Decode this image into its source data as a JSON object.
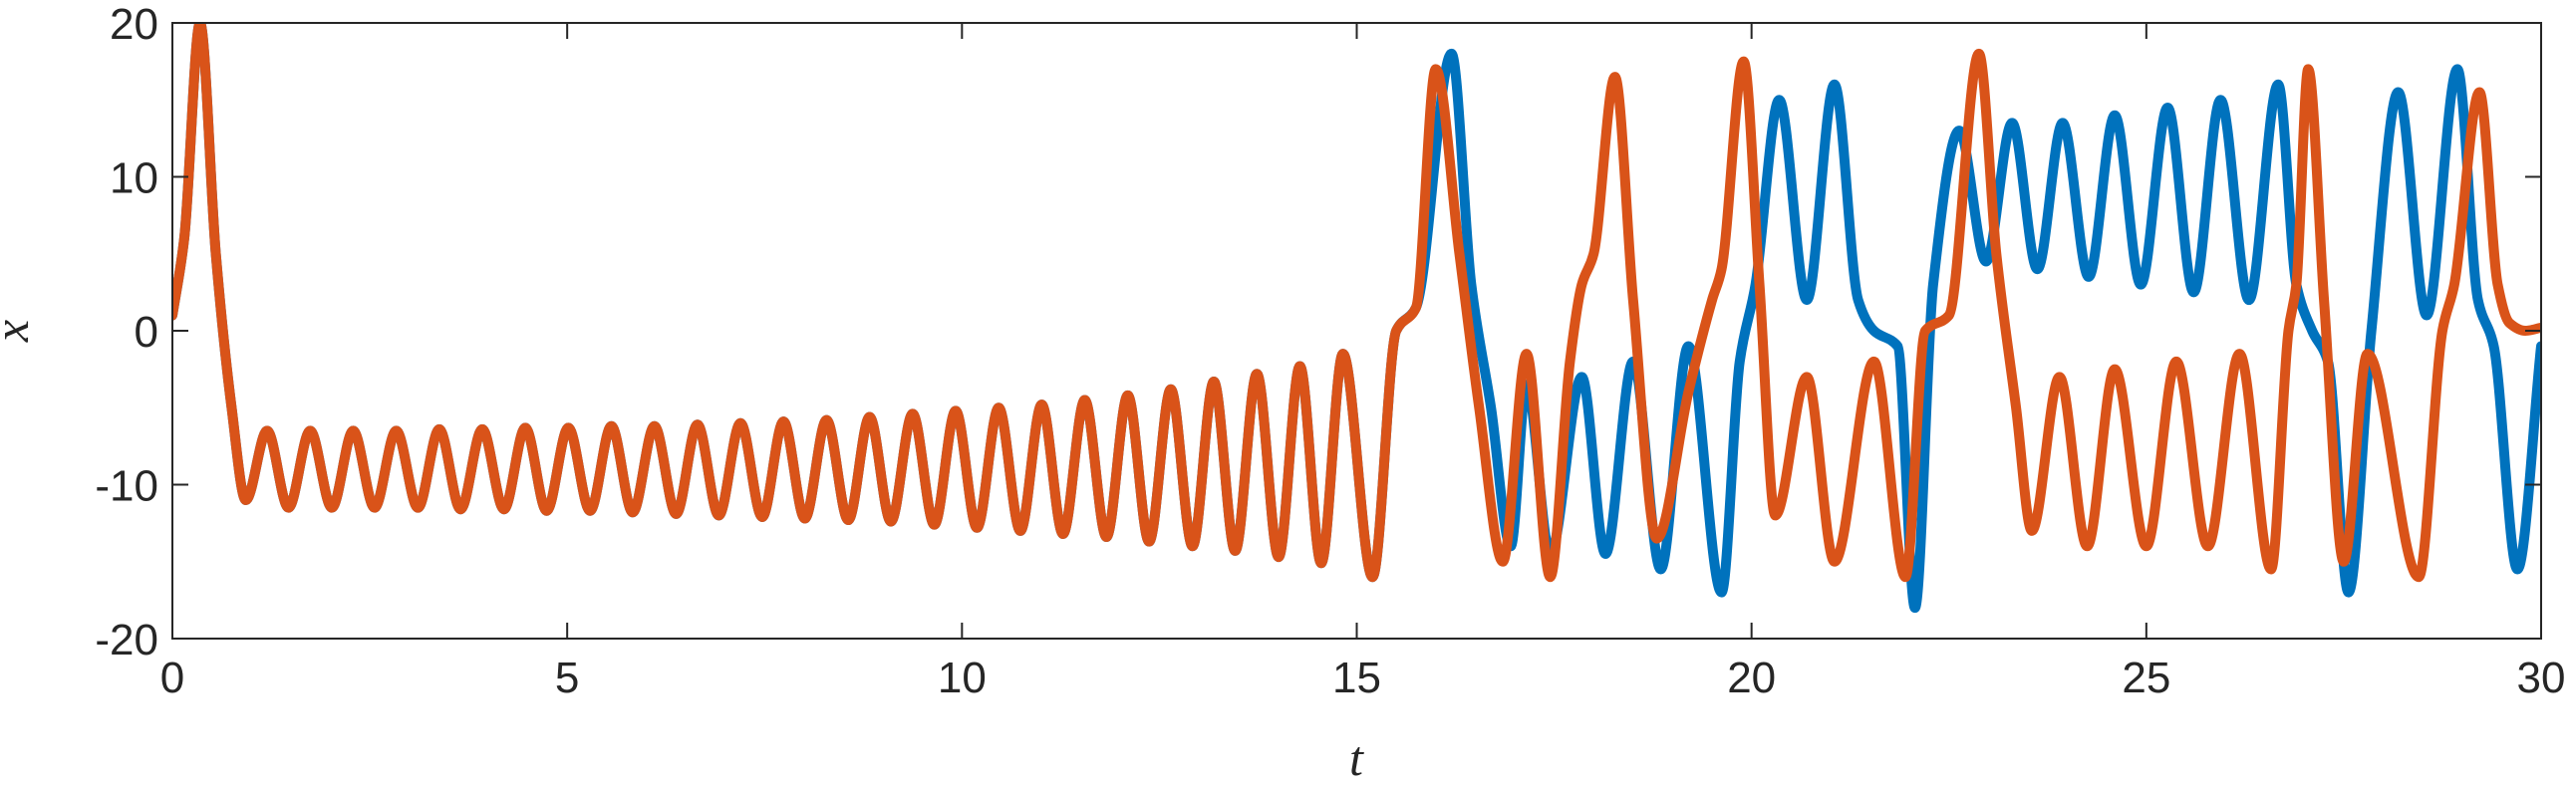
{
  "chart_data": {
    "type": "line",
    "xlabel": "t",
    "ylabel": "x",
    "xlim": [
      0,
      30
    ],
    "ylim": [
      -20,
      20
    ],
    "xticks": [
      0,
      5,
      10,
      15,
      20,
      25,
      30
    ],
    "yticks": [
      -20,
      -10,
      0,
      10,
      20
    ],
    "grid": false,
    "line_width": 10,
    "series": [
      {
        "color": "#0072BD",
        "x": [
          0,
          0.15,
          0.35,
          0.55,
          0.75,
          0.93,
          1.2,
          1.47,
          1.745,
          2.02,
          2.29,
          2.56,
          2.835,
          3.11,
          3.38,
          3.65,
          3.925,
          4.2,
          4.47,
          4.74,
          5.015,
          5.29,
          5.56,
          5.83,
          6.105,
          6.38,
          6.65,
          6.92,
          7.195,
          7.47,
          7.74,
          8.01,
          8.285,
          8.56,
          8.83,
          9.1,
          9.375,
          9.65,
          9.92,
          10.19,
          10.465,
          10.74,
          11.01,
          11.28,
          11.555,
          11.83,
          12.1,
          12.37,
          12.645,
          12.92,
          13.19,
          13.46,
          13.735,
          14.01,
          14.28,
          14.55,
          14.825,
          15.2,
          15.5,
          15.75,
          16.2,
          16.45,
          16.7,
          16.95,
          17.15,
          17.45,
          17.85,
          18.15,
          18.5,
          18.85,
          19.2,
          19.62,
          19.85,
          20.05,
          20.35,
          20.7,
          21.05,
          21.35,
          21.55,
          21.85,
          22.07,
          22.3,
          22.63,
          22.97,
          23.3,
          23.62,
          23.94,
          24.27,
          24.6,
          24.93,
          25.27,
          25.6,
          25.94,
          26.3,
          26.67,
          26.9,
          27.1,
          27.3,
          27.56,
          27.85,
          28.19,
          28.55,
          28.94,
          29.2,
          29.4,
          29.7,
          30
        ],
        "values": [
          1,
          6,
          20,
          5,
          -5,
          -11,
          -6.5,
          -11.5,
          -6.5,
          -11.5,
          -6.5,
          -11.5,
          -6.5,
          -11.5,
          -6.4,
          -11.6,
          -6.4,
          -11.6,
          -6.3,
          -11.7,
          -6.3,
          -11.7,
          -6.2,
          -11.8,
          -6.2,
          -11.9,
          -6.1,
          -12,
          -6,
          -12.1,
          -5.9,
          -12.2,
          -5.8,
          -12.3,
          -5.6,
          -12.4,
          -5.4,
          -12.6,
          -5.2,
          -12.8,
          -5,
          -13,
          -4.8,
          -13.2,
          -4.5,
          -13.4,
          -4.2,
          -13.7,
          -3.8,
          -14,
          -3.3,
          -14.3,
          -2.8,
          -14.7,
          -2.3,
          -15.1,
          -1.5,
          -16,
          0,
          1.5,
          18,
          3,
          -5,
          -14,
          -3.5,
          -14.5,
          -3,
          -14.5,
          -2,
          -15.5,
          -1,
          -17,
          -2,
          3,
          15,
          2,
          16,
          2,
          0,
          -1,
          -18,
          3,
          13,
          4.5,
          13.5,
          4,
          13.5,
          3.5,
          14,
          3,
          14.5,
          2.5,
          15,
          2,
          16,
          3,
          0,
          -2,
          -17,
          0,
          15.5,
          1,
          17,
          2,
          -1,
          -15.5,
          -1
        ]
      },
      {
        "color": "#D95319",
        "x": [
          0,
          0.15,
          0.35,
          0.55,
          0.75,
          0.93,
          1.2,
          1.47,
          1.745,
          2.02,
          2.29,
          2.56,
          2.835,
          3.11,
          3.38,
          3.65,
          3.925,
          4.2,
          4.47,
          4.74,
          5.015,
          5.29,
          5.56,
          5.83,
          6.105,
          6.38,
          6.65,
          6.92,
          7.195,
          7.47,
          7.74,
          8.01,
          8.285,
          8.56,
          8.83,
          9.1,
          9.375,
          9.65,
          9.92,
          10.19,
          10.465,
          10.74,
          11.01,
          11.28,
          11.555,
          11.83,
          12.1,
          12.37,
          12.645,
          12.92,
          13.19,
          13.46,
          13.735,
          14.01,
          14.28,
          14.55,
          14.825,
          15.2,
          15.5,
          15.75,
          16.0,
          16.3,
          16.55,
          16.85,
          17.15,
          17.45,
          17.7,
          17.85,
          18.0,
          18.27,
          18.5,
          18.8,
          19.2,
          19.5,
          19.62,
          19.9,
          20.1,
          20.3,
          20.7,
          21.05,
          21.55,
          21.95,
          22.2,
          22.5,
          22.88,
          23.1,
          23.35,
          23.55,
          23.9,
          24.25,
          24.6,
          25.0,
          25.38,
          25.78,
          26.18,
          26.58,
          26.8,
          26.9,
          27.05,
          27.25,
          27.5,
          27.8,
          28.45,
          28.75,
          28.9,
          29.22,
          29.45,
          29.6,
          29.8,
          30
        ],
        "values": [
          1,
          6,
          20,
          5,
          -5,
          -11,
          -6.5,
          -11.5,
          -6.5,
          -11.5,
          -6.5,
          -11.5,
          -6.5,
          -11.5,
          -6.4,
          -11.6,
          -6.4,
          -11.6,
          -6.3,
          -11.7,
          -6.3,
          -11.7,
          -6.2,
          -11.8,
          -6.2,
          -11.9,
          -6.1,
          -12,
          -6,
          -12.1,
          -5.9,
          -12.2,
          -5.8,
          -12.3,
          -5.6,
          -12.4,
          -5.4,
          -12.6,
          -5.2,
          -12.8,
          -5,
          -13,
          -4.8,
          -13.2,
          -4.5,
          -13.4,
          -4.2,
          -13.7,
          -3.8,
          -14,
          -3.3,
          -14.3,
          -2.8,
          -14.7,
          -2.3,
          -15.1,
          -1.5,
          -16,
          0,
          1.5,
          17,
          5,
          -5,
          -15,
          -1.5,
          -16,
          -2,
          3,
          5,
          16.5,
          2,
          -13.5,
          -4,
          2,
          4,
          17.5,
          3,
          -12,
          -3,
          -15,
          -2,
          -16,
          0,
          1,
          18,
          5,
          -5,
          -13,
          -3,
          -14,
          -2.5,
          -14,
          -2,
          -14,
          -1.5,
          -15.5,
          0,
          3,
          17,
          2,
          -15,
          -1.5,
          -16,
          0,
          3,
          15.5,
          3,
          0.5,
          0,
          0.2
        ]
      }
    ]
  }
}
